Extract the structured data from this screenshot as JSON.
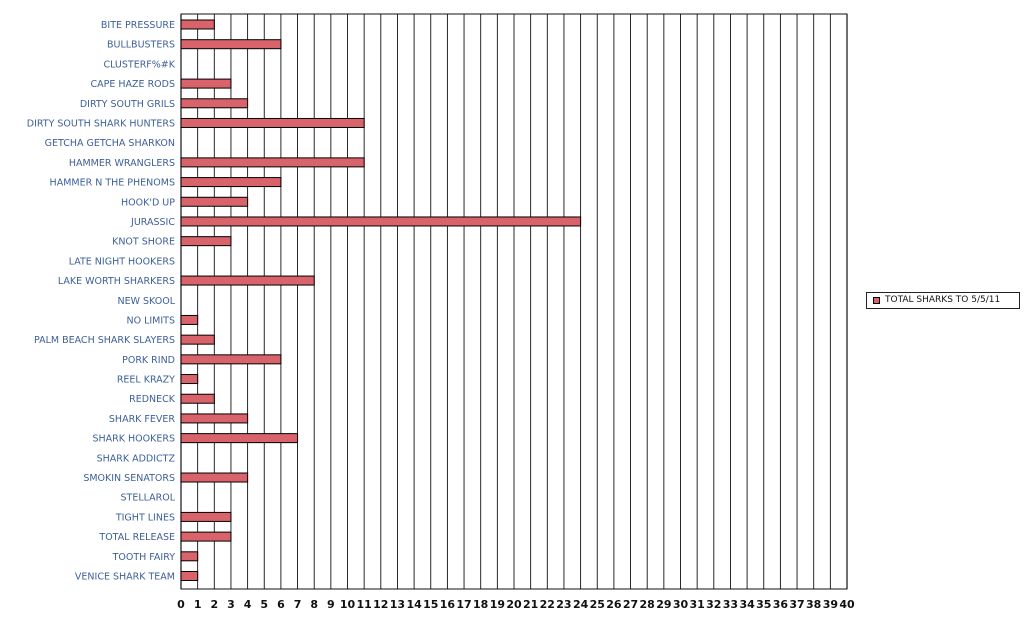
{
  "chart_data": {
    "type": "bar",
    "orientation": "horizontal",
    "categories": [
      "BITE PRESSURE",
      "BULLBUSTERS",
      "CLUSTERF%#K",
      "CAPE HAZE RODS",
      "DIRTY SOUTH GRILS",
      "DIRTY SOUTH SHARK HUNTERS",
      "GETCHA GETCHA SHARKON",
      "HAMMER WRANGLERS",
      "HAMMER N THE PHENOMS",
      "HOOK'D UP",
      "JURASSIC",
      "KNOT SHORE",
      "LATE NIGHT HOOKERS",
      "LAKE WORTH SHARKERS",
      "NEW SKOOL",
      "NO LIMITS",
      "PALM BEACH SHARK SLAYERS",
      "PORK RIND",
      "REEL KRAZY",
      "REDNECK",
      "SHARK FEVER",
      "SHARK HOOKERS",
      "SHARK ADDICTZ",
      "SMOKIN SENATORS",
      "STELLAROL",
      "TIGHT LINES",
      "TOTAL RELEASE",
      "TOOTH FAIRY",
      "VENICE SHARK TEAM"
    ],
    "series": [
      {
        "name": "TOTAL SHARKS TO 5/5/11",
        "values": [
          2,
          6,
          0,
          3,
          4,
          11,
          0,
          11,
          6,
          4,
          24,
          3,
          0,
          8,
          0,
          1,
          2,
          6,
          1,
          2,
          4,
          7,
          0,
          4,
          0,
          3,
          3,
          1,
          1
        ]
      }
    ],
    "xlim": [
      0,
      40
    ],
    "xticks": [
      0,
      1,
      2,
      3,
      4,
      5,
      6,
      7,
      8,
      9,
      10,
      11,
      12,
      13,
      14,
      15,
      16,
      17,
      18,
      19,
      20,
      21,
      22,
      23,
      24,
      25,
      26,
      27,
      28,
      29,
      30,
      31,
      32,
      33,
      34,
      35,
      36,
      37,
      38,
      39,
      40
    ],
    "grid": true,
    "legend_position": "right",
    "colors": {
      "bar_fill": "#d9636b",
      "bar_stroke": "#000000",
      "category_text": "#3d5f99",
      "axis_text": "#111111",
      "grid": "#111111"
    }
  }
}
